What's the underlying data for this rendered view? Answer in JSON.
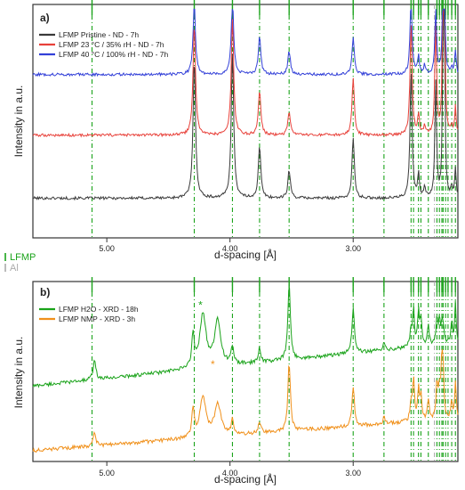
{
  "reference_legend": {
    "lfmp_label": "LFMP",
    "lfmp_color": "#1aa31a",
    "al_label": "Al",
    "al_color": "#aaaaaa"
  },
  "chart_data": [
    {
      "type": "line",
      "panel_label": "a)",
      "xlabel": "d-spacing [Å]",
      "ylabel": "Intensity in a.u.",
      "xlim": [
        5.6,
        2.15
      ],
      "x_axis_reversed": true,
      "xticks": [
        5.0,
        4.0,
        3.0
      ],
      "xtick_labels": [
        "5.00",
        "4.00",
        "3.00"
      ],
      "y_tick_labels": false,
      "grid": false,
      "legend_position": "top-left",
      "reference_lines_lfmp": [
        5.12,
        4.29,
        3.98,
        3.76,
        3.52,
        3.0,
        2.75,
        2.53,
        2.51,
        2.47,
        2.45,
        2.39,
        2.32,
        2.3,
        2.28,
        2.27,
        2.25,
        2.23,
        2.2,
        2.17
      ],
      "reference_lines_al": [
        2.34
      ],
      "series": [
        {
          "name": "LFMP Pristine - ND - 7h",
          "color": "#3a3a3a",
          "baseline": 0.17,
          "noise": 0.006,
          "peaks": [
            [
              4.29,
              0.6,
              0.012
            ],
            [
              3.98,
              0.62,
              0.012
            ],
            [
              3.76,
              0.22,
              0.012
            ],
            [
              3.52,
              0.12,
              0.012
            ],
            [
              3.0,
              0.26,
              0.011
            ],
            [
              2.53,
              0.55,
              0.01
            ],
            [
              2.47,
              0.1,
              0.008
            ],
            [
              2.42,
              0.05,
              0.008
            ],
            [
              2.33,
              0.5,
              0.008
            ],
            [
              2.27,
              0.55,
              0.007
            ],
            [
              2.26,
              0.62,
              0.007
            ],
            [
              2.17,
              0.13,
              0.007
            ],
            [
              2.2,
              0.05,
              0.007
            ]
          ]
        },
        {
          "name": "LFMP 23 °C / 35% rH - ND - 7h",
          "color": "#e8413a",
          "baseline": 0.44,
          "noise": 0.006,
          "peaks": [
            [
              4.29,
              0.48,
              0.012
            ],
            [
              3.98,
              0.5,
              0.012
            ],
            [
              3.76,
              0.19,
              0.012
            ],
            [
              3.52,
              0.1,
              0.012
            ],
            [
              3.0,
              0.24,
              0.011
            ],
            [
              2.53,
              0.48,
              0.01
            ],
            [
              2.47,
              0.09,
              0.008
            ],
            [
              2.42,
              0.04,
              0.008
            ],
            [
              2.33,
              0.5,
              0.008
            ],
            [
              2.27,
              0.57,
              0.007
            ],
            [
              2.26,
              0.57,
              0.007
            ],
            [
              2.17,
              0.12,
              0.007
            ],
            [
              2.2,
              0.04,
              0.007
            ]
          ]
        },
        {
          "name": "LFMP 40 °C / 100% rH - ND - 7h",
          "color": "#3340d8",
          "baseline": 0.7,
          "noise": 0.006,
          "peaks": [
            [
              4.29,
              0.3,
              0.012
            ],
            [
              3.98,
              0.32,
              0.012
            ],
            [
              3.76,
              0.16,
              0.012
            ],
            [
              3.52,
              0.1,
              0.012
            ],
            [
              3.0,
              0.16,
              0.011
            ],
            [
              2.53,
              0.33,
              0.01
            ],
            [
              2.47,
              0.08,
              0.008
            ],
            [
              2.42,
              0.04,
              0.008
            ],
            [
              2.33,
              0.3,
              0.008
            ],
            [
              2.27,
              0.35,
              0.007
            ],
            [
              2.26,
              0.35,
              0.007
            ],
            [
              2.17,
              0.1,
              0.007
            ],
            [
              2.2,
              0.03,
              0.007
            ]
          ]
        }
      ]
    },
    {
      "type": "line",
      "panel_label": "b)",
      "xlabel": "d-spacing [Å]",
      "ylabel": "Intensity in a.u.",
      "xlim": [
        5.6,
        2.15
      ],
      "x_axis_reversed": true,
      "xticks": [
        5.0,
        4.0,
        3.0
      ],
      "xtick_labels": [
        "5.00",
        "4.00",
        "3.00"
      ],
      "y_tick_labels": false,
      "grid": false,
      "legend_position": "top-left",
      "reference_lines_lfmp": [
        5.12,
        4.29,
        3.98,
        3.76,
        3.52,
        3.0,
        2.75,
        2.53,
        2.51,
        2.47,
        2.45,
        2.39,
        2.32,
        2.3,
        2.28,
        2.27,
        2.25,
        2.23,
        2.2,
        2.17
      ],
      "reference_lines_al": [
        2.34
      ],
      "annotations": [
        {
          "text": "*",
          "x": 4.24,
          "y": 0.85,
          "color": "#1aa31a"
        },
        {
          "text": "*",
          "x": 4.14,
          "y": 0.52,
          "color": "#f0901a"
        }
      ],
      "series": [
        {
          "name": "LFMP H2O - XRD - 18h",
          "color": "#1aa31a",
          "baseline_start": 0.42,
          "baseline_end": 0.66,
          "noise": 0.01,
          "peaks": [
            [
              5.1,
              0.12,
              0.012
            ],
            [
              4.3,
              0.18,
              0.012
            ],
            [
              4.22,
              0.3,
              0.03
            ],
            [
              4.1,
              0.25,
              0.03
            ],
            [
              3.98,
              0.1,
              0.012
            ],
            [
              3.76,
              0.08,
              0.012
            ],
            [
              3.52,
              0.42,
              0.012
            ],
            [
              3.0,
              0.25,
              0.012
            ],
            [
              2.75,
              0.05,
              0.01
            ],
            [
              2.53,
              0.1,
              0.01
            ],
            [
              2.51,
              0.2,
              0.008
            ],
            [
              2.47,
              0.2,
              0.008
            ],
            [
              2.45,
              0.15,
              0.008
            ],
            [
              2.39,
              0.12,
              0.008
            ],
            [
              2.32,
              0.15,
              0.008
            ],
            [
              2.3,
              0.12,
              0.008
            ],
            [
              2.28,
              0.1,
              0.008
            ],
            [
              2.27,
              0.08,
              0.008
            ],
            [
              2.2,
              0.12,
              0.007
            ],
            [
              2.17,
              0.22,
              0.007
            ]
          ]
        },
        {
          "name": "LFMP NMP - XRD - 3h",
          "color": "#f0901a",
          "baseline_start": 0.06,
          "baseline_end": 0.24,
          "noise": 0.01,
          "peaks": [
            [
              5.1,
              0.08,
              0.012
            ],
            [
              4.3,
              0.15,
              0.012
            ],
            [
              4.22,
              0.22,
              0.03
            ],
            [
              4.1,
              0.18,
              0.03
            ],
            [
              3.98,
              0.08,
              0.012
            ],
            [
              3.76,
              0.06,
              0.012
            ],
            [
              3.52,
              0.38,
              0.012
            ],
            [
              3.0,
              0.22,
              0.012
            ],
            [
              2.75,
              0.04,
              0.01
            ],
            [
              2.53,
              0.1,
              0.01
            ],
            [
              2.51,
              0.24,
              0.008
            ],
            [
              2.47,
              0.18,
              0.008
            ],
            [
              2.45,
              0.14,
              0.008
            ],
            [
              2.39,
              0.12,
              0.008
            ],
            [
              2.32,
              0.2,
              0.008
            ],
            [
              2.3,
              0.16,
              0.008
            ],
            [
              2.28,
              0.3,
              0.008
            ],
            [
              2.27,
              0.2,
              0.008
            ],
            [
              2.2,
              0.1,
              0.007
            ],
            [
              2.17,
              0.2,
              0.007
            ]
          ]
        }
      ]
    }
  ]
}
